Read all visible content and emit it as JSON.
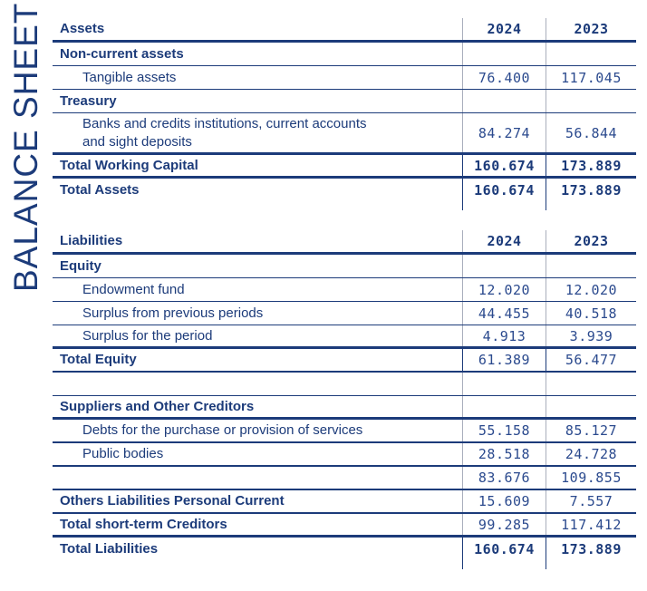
{
  "page_title": "BALANCE SHEET",
  "colors": {
    "navy_text_and_rules": "#1c3b7a",
    "number_text": "#2b4a8e",
    "light_column_separator": "#a9aebc",
    "background": "#ffffff"
  },
  "sections": [
    {
      "name": "assets",
      "header": {
        "label": "Assets",
        "col1": "2024",
        "col2": "2023"
      },
      "rows": [
        {
          "kind": "group",
          "label": "Non-current assets",
          "v2024": "",
          "v2023": "",
          "rule": "thin"
        },
        {
          "kind": "item",
          "label": "Tangible assets",
          "v2024": "76.400",
          "v2023": "117.045",
          "rule": "thin"
        },
        {
          "kind": "group",
          "label": "Treasury",
          "v2024": "",
          "v2023": "",
          "rule": "thin"
        },
        {
          "kind": "item",
          "label": "Banks and credits institutions, current accounts\nand sight deposits",
          "v2024": "84.274",
          "v2023": "56.844",
          "rule": "thick",
          "tall": true
        },
        {
          "kind": "group",
          "label": "Total Working Capital",
          "v2024": "160.674",
          "v2023": "173.889",
          "rule": "thick",
          "bold_values": true,
          "navy_separators": true
        },
        {
          "kind": "group",
          "label": "Total Assets",
          "v2024": "160.674",
          "v2023": "173.889",
          "rule": "none",
          "bold_values": true,
          "navy_separators": true,
          "stub_after": true
        }
      ]
    },
    {
      "name": "liabilities",
      "header": {
        "label": "Liabilities",
        "col1": "2024",
        "col2": "2023"
      },
      "rows": [
        {
          "kind": "group",
          "label": "Equity",
          "v2024": "",
          "v2023": "",
          "rule": "thin"
        },
        {
          "kind": "item",
          "label": "Endowment fund",
          "v2024": "12.020",
          "v2023": "12.020",
          "rule": "thin"
        },
        {
          "kind": "item",
          "label": "Surplus from previous periods",
          "v2024": "44.455",
          "v2023": "40.518",
          "rule": "thin"
        },
        {
          "kind": "item",
          "label": "Surplus for the period",
          "v2024": "4.913",
          "v2023": "3.939",
          "rule": "thick"
        },
        {
          "kind": "group",
          "label": "Total Equity",
          "v2024": "61.389",
          "v2023": "56.477",
          "rule": "med",
          "navy_separators": true
        },
        {
          "kind": "spacer",
          "label": "",
          "v2024": "",
          "v2023": "",
          "rule": "thin"
        },
        {
          "kind": "group",
          "label": "Suppliers and Other Creditors",
          "v2024": "",
          "v2023": "",
          "rule": "thick"
        },
        {
          "kind": "item",
          "label": "Debts for the purchase or provision of services",
          "v2024": "55.158",
          "v2023": "85.127",
          "rule": "med"
        },
        {
          "kind": "item",
          "label": "Public bodies",
          "v2024": "28.518",
          "v2023": "24.728",
          "rule": "med"
        },
        {
          "kind": "item",
          "label": "",
          "v2024": "83.676",
          "v2023": "109.855",
          "rule": "med"
        },
        {
          "kind": "group",
          "label": "Others Liabilities Personal Current",
          "v2024": "15.609",
          "v2023": "7.557",
          "rule": "med"
        },
        {
          "kind": "group",
          "label": "Total short-term Creditors",
          "v2024": "99.285",
          "v2023": "117.412",
          "rule": "thick"
        },
        {
          "kind": "group",
          "label": "Total Liabilities",
          "v2024": "160.674",
          "v2023": "173.889",
          "rule": "none",
          "bold_values": true,
          "navy_separators": true,
          "stub_after": true
        }
      ]
    }
  ]
}
